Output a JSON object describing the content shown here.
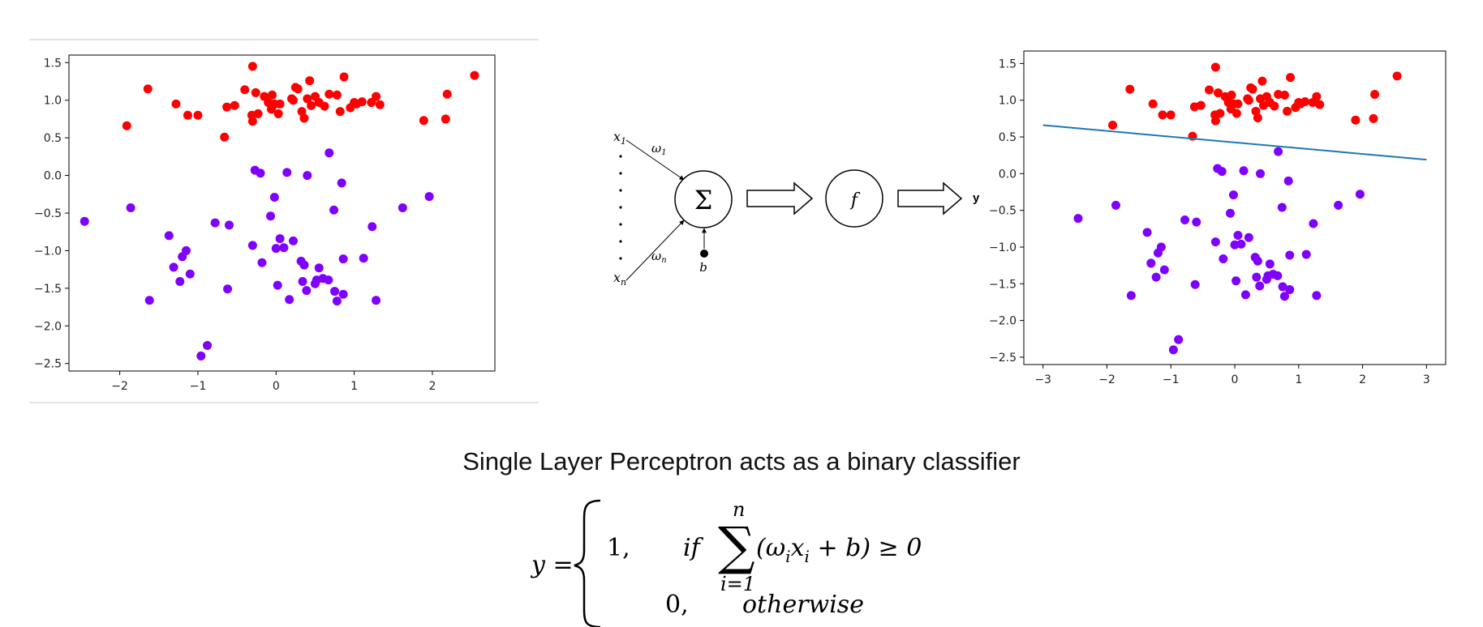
{
  "caption": "Single Layer Perceptron acts as a binary classifier",
  "chart_data": [
    {
      "type": "scatter",
      "x_ticks": [
        "−2",
        "−1",
        "0",
        "1",
        "2"
      ],
      "y_ticks": [
        "1.5",
        "1.0",
        "0.5",
        "0.0",
        "−0.5",
        "−1.0",
        "−1.5",
        "−2.0",
        "−2.5"
      ],
      "xlim": [
        -2.65,
        2.8
      ],
      "ylim": [
        -2.6,
        1.6
      ],
      "grid": false,
      "series": [
        {
          "color": "#ff0000",
          "points": [
            [
              -1.91,
              0.66
            ],
            [
              -1.64,
              1.15
            ],
            [
              -1.28,
              0.95
            ],
            [
              -1.13,
              0.8
            ],
            [
              -1.0,
              0.8
            ],
            [
              -0.66,
              0.51
            ],
            [
              -0.63,
              0.91
            ],
            [
              -0.53,
              0.93
            ],
            [
              -0.4,
              1.14
            ],
            [
              -0.3,
              1.45
            ],
            [
              -0.31,
              0.8
            ],
            [
              -0.3,
              0.72
            ],
            [
              -0.26,
              1.1
            ],
            [
              -0.23,
              0.82
            ],
            [
              -0.15,
              1.05
            ],
            [
              -0.1,
              0.97
            ],
            [
              -0.06,
              0.88
            ],
            [
              -0.05,
              1.07
            ],
            [
              -0.02,
              0.95
            ],
            [
              0.03,
              0.82
            ],
            [
              0.05,
              0.95
            ],
            [
              0.2,
              1.02
            ],
            [
              0.22,
              1.0
            ],
            [
              0.25,
              1.17
            ],
            [
              0.28,
              1.15
            ],
            [
              0.33,
              0.85
            ],
            [
              0.36,
              0.76
            ],
            [
              0.4,
              1.02
            ],
            [
              0.43,
              1.26
            ],
            [
              0.45,
              0.93
            ],
            [
              0.5,
              1.05
            ],
            [
              0.55,
              0.97
            ],
            [
              0.62,
              0.92
            ],
            [
              0.68,
              1.08
            ],
            [
              0.78,
              1.07
            ],
            [
              0.82,
              0.85
            ],
            [
              0.87,
              1.31
            ],
            [
              0.95,
              0.9
            ],
            [
              1.0,
              0.97
            ],
            [
              1.03,
              0.95
            ],
            [
              1.1,
              0.98
            ],
            [
              1.22,
              0.97
            ],
            [
              1.28,
              1.05
            ],
            [
              1.33,
              0.94
            ],
            [
              1.89,
              0.73
            ],
            [
              2.17,
              0.75
            ],
            [
              2.19,
              1.08
            ],
            [
              2.54,
              1.33
            ]
          ]
        },
        {
          "color": "#7f00ff",
          "points": [
            [
              -2.45,
              -0.61
            ],
            [
              -1.86,
              -0.43
            ],
            [
              -1.62,
              -1.66
            ],
            [
              -1.37,
              -0.8
            ],
            [
              -1.31,
              -1.22
            ],
            [
              -1.23,
              -1.41
            ],
            [
              -1.2,
              -1.08
            ],
            [
              -1.15,
              -1.0
            ],
            [
              -1.1,
              -1.31
            ],
            [
              -0.96,
              -2.4
            ],
            [
              -0.88,
              -2.26
            ],
            [
              -0.78,
              -0.63
            ],
            [
              -0.62,
              -1.51
            ],
            [
              -0.6,
              -0.66
            ],
            [
              -0.3,
              -0.93
            ],
            [
              -0.27,
              0.07
            ],
            [
              -0.2,
              0.03
            ],
            [
              -0.18,
              -1.16
            ],
            [
              -0.07,
              -0.54
            ],
            [
              -0.02,
              -0.29
            ],
            [
              0.0,
              -0.97
            ],
            [
              0.02,
              -1.46
            ],
            [
              0.05,
              -0.84
            ],
            [
              0.1,
              -0.96
            ],
            [
              0.14,
              0.04
            ],
            [
              0.17,
              -1.65
            ],
            [
              0.22,
              -0.87
            ],
            [
              0.32,
              -1.14
            ],
            [
              0.34,
              -1.41
            ],
            [
              0.36,
              -1.19
            ],
            [
              0.39,
              -1.53
            ],
            [
              0.4,
              0.0
            ],
            [
              0.5,
              -1.44
            ],
            [
              0.52,
              -1.39
            ],
            [
              0.55,
              -1.23
            ],
            [
              0.6,
              -1.37
            ],
            [
              0.67,
              -1.39
            ],
            [
              0.68,
              0.3
            ],
            [
              0.74,
              -0.46
            ],
            [
              0.75,
              -1.54
            ],
            [
              0.78,
              -1.67
            ],
            [
              0.84,
              -0.1
            ],
            [
              0.86,
              -1.58
            ],
            [
              0.86,
              -1.11
            ],
            [
              1.12,
              -1.1
            ],
            [
              1.23,
              -0.68
            ],
            [
              1.28,
              -1.66
            ],
            [
              1.62,
              -0.43
            ],
            [
              1.96,
              -0.28
            ]
          ]
        }
      ]
    },
    {
      "type": "scatter",
      "x_ticks": [
        "−3",
        "−2",
        "−1",
        "0",
        "1",
        "2",
        "3"
      ],
      "y_ticks": [
        "1.5",
        "1.0",
        "0.5",
        "0.0",
        "−0.5",
        "−1.0",
        "−1.5",
        "−2.0",
        "−2.5"
      ],
      "xlim": [
        -3.3,
        3.3
      ],
      "ylim": [
        -2.6,
        1.67
      ],
      "grid": false,
      "decision_line": {
        "color": "#1f77b4",
        "x": [
          -3,
          3
        ],
        "y": [
          0.66,
          0.19
        ]
      },
      "series_ref": "same points as first plot"
    }
  ],
  "diagram": {
    "x1": "x",
    "x1_sub": "1",
    "xn": "x",
    "xn_sub": "n",
    "w1": "ω",
    "w1_sub": "1",
    "wn": "ω",
    "wn_sub": "n",
    "bias": "b",
    "sum_symbol": "Σ",
    "activation": "f",
    "output": "y"
  },
  "formula": {
    "lhs": "y =",
    "case1_value": "1,",
    "case1_cond": "if",
    "sum_symbol": "∑",
    "sum_upper": "n",
    "sum_lower": "i=1",
    "summand": "(ω",
    "summand_i1": "i",
    "summand_x": "x",
    "summand_i2": "i",
    "summand_rest": " + b) ≥ 0",
    "case2_value": "0,",
    "case2_cond": "otherwise"
  }
}
